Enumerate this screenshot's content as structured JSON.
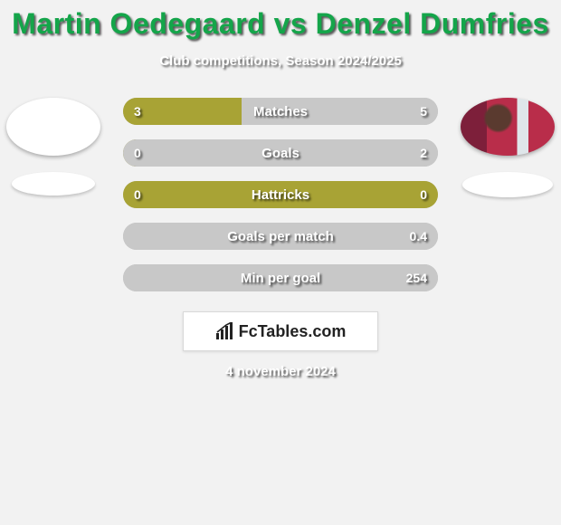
{
  "background_color": "#f2f2f2",
  "title": {
    "text": "Martin Oedegaard vs Denzel Dumfries",
    "color": "#14a54a",
    "fontsize": 32
  },
  "subtitle": {
    "text": "Club competitions, Season 2024/2025",
    "color": "#ffffff",
    "fontsize": 15
  },
  "date": {
    "text": "4 november 2024",
    "color": "#ffffff",
    "fontsize": 15
  },
  "logo": {
    "text": "FcTables.com",
    "color": "#222222"
  },
  "player_left": {
    "name": "Martin Oedegaard",
    "avatar_bg": "#ffffff",
    "has_image": false
  },
  "player_right": {
    "name": "Denzel Dumfries",
    "avatar_bg": "#8a2a3a",
    "has_image": true
  },
  "bars": {
    "label_color": "#ffffff",
    "value_color": "#ffffff",
    "left_color": "#a8a335",
    "right_color": "#c8c8c8",
    "track_color": "#c8c8c8",
    "items": [
      {
        "label": "Matches",
        "left": "3",
        "right": "5",
        "left_pct": 37.5,
        "right_pct": 62.5
      },
      {
        "label": "Goals",
        "left": "0",
        "right": "2",
        "left_pct": 0,
        "right_pct": 100
      },
      {
        "label": "Hattricks",
        "left": "0",
        "right": "0",
        "left_pct": 50,
        "right_pct": 50,
        "neutral": true
      },
      {
        "label": "Goals per match",
        "left": "",
        "right": "0.4",
        "left_pct": 0,
        "right_pct": 100
      },
      {
        "label": "Min per goal",
        "left": "",
        "right": "254",
        "left_pct": 0,
        "right_pct": 100
      }
    ]
  }
}
